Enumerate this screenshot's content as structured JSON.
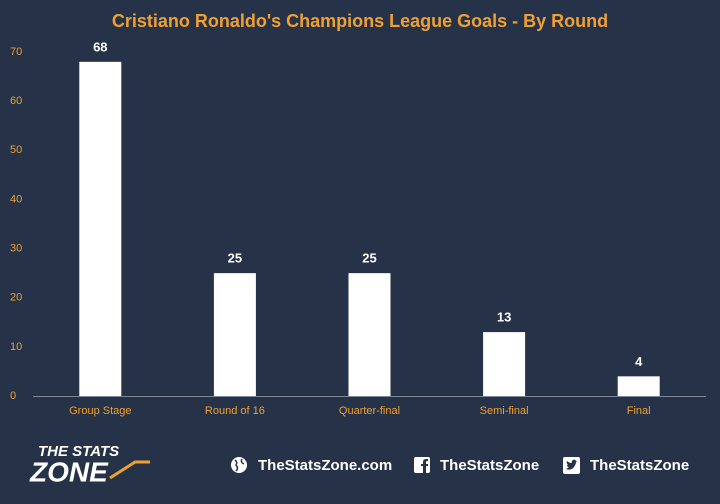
{
  "chart_data": {
    "type": "bar",
    "title": "Cristiano Ronaldo's Champions League Goals - By Round",
    "categories": [
      "Group Stage",
      "Round of 16",
      "Quarter-final",
      "Semi-final",
      "Final"
    ],
    "values": [
      68,
      25,
      25,
      13,
      4
    ],
    "color": "#ffffff",
    "ylim": [
      0,
      70
    ],
    "yticks": [
      0,
      10,
      20,
      30,
      40,
      50,
      60,
      70
    ],
    "grid": false
  },
  "footer": {
    "logo_top": "THE STATS",
    "logo_bottom": "ZONE",
    "links": [
      "TheStatsZone.com",
      "TheStatsZone",
      "TheStatsZone"
    ]
  }
}
